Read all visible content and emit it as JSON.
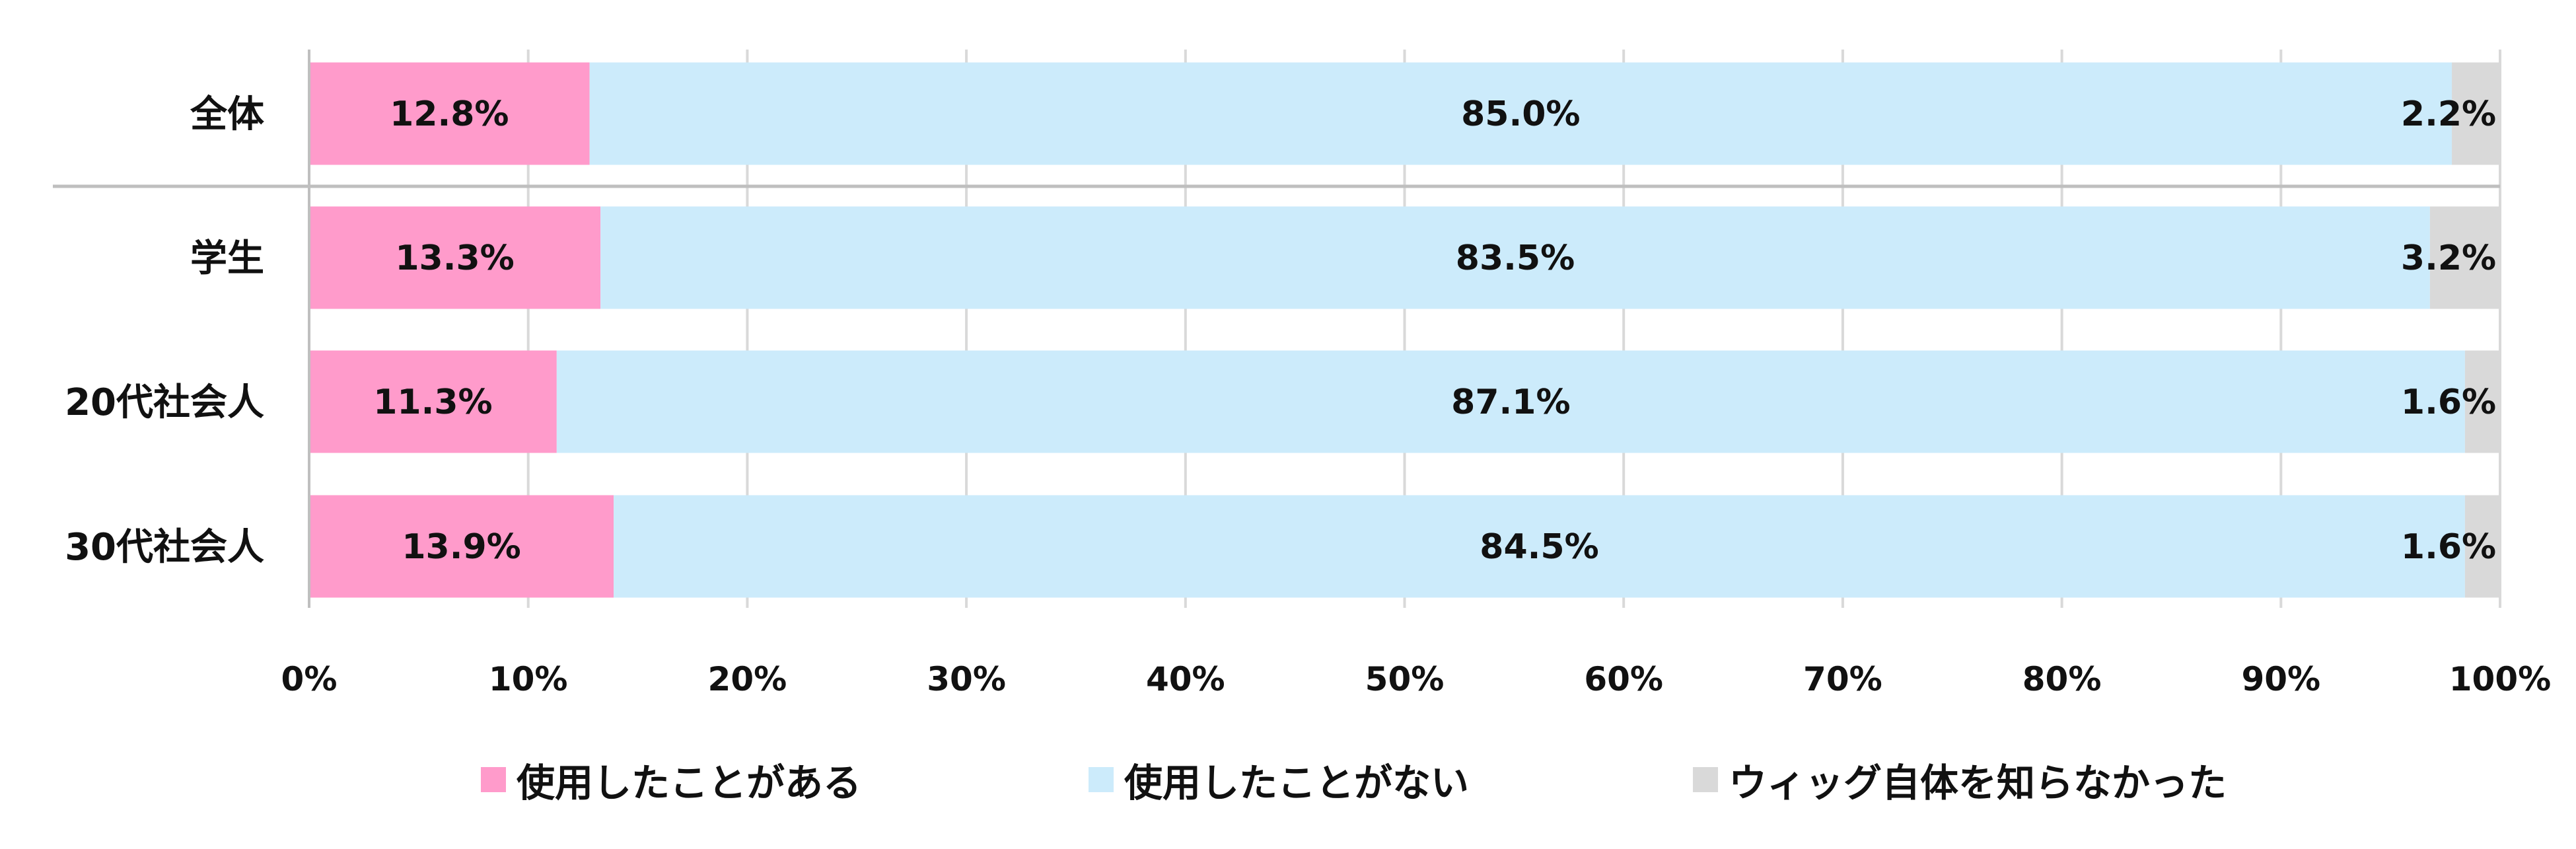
{
  "chart_data": {
    "type": "bar",
    "orientation": "horizontal",
    "stacked": "percent",
    "categories": [
      "全体",
      "学生",
      "20代社会人",
      "30代社会人"
    ],
    "series": [
      {
        "name": "使用したことがある",
        "values": [
          12.8,
          13.3,
          11.3,
          13.9
        ],
        "labels": [
          "12.8%",
          "13.3%",
          "11.3%",
          "13.9%"
        ],
        "color": "#FF9BCB"
      },
      {
        "name": "使用したことがない",
        "values": [
          85.0,
          83.5,
          87.1,
          84.5
        ],
        "labels": [
          "85.0%",
          "83.5%",
          "87.1%",
          "84.5%"
        ],
        "color": "#CCEBFB"
      },
      {
        "name": "ウィッグ自体を知らなかった",
        "values": [
          2.2,
          3.2,
          1.6,
          1.6
        ],
        "labels": [
          "2.2%",
          "3.2%",
          "1.6%",
          "1.6%"
        ],
        "color": "#D9D9D9"
      }
    ],
    "xlim": [
      0,
      100
    ],
    "x_ticks": [
      "0%",
      "10%",
      "20%",
      "30%",
      "40%",
      "50%",
      "60%",
      "70%",
      "80%",
      "90%",
      "100%"
    ],
    "grid": "vertical",
    "legend_position": "bottom",
    "separator_after_category": "全体",
    "title": "",
    "xlabel": "",
    "ylabel": ""
  }
}
